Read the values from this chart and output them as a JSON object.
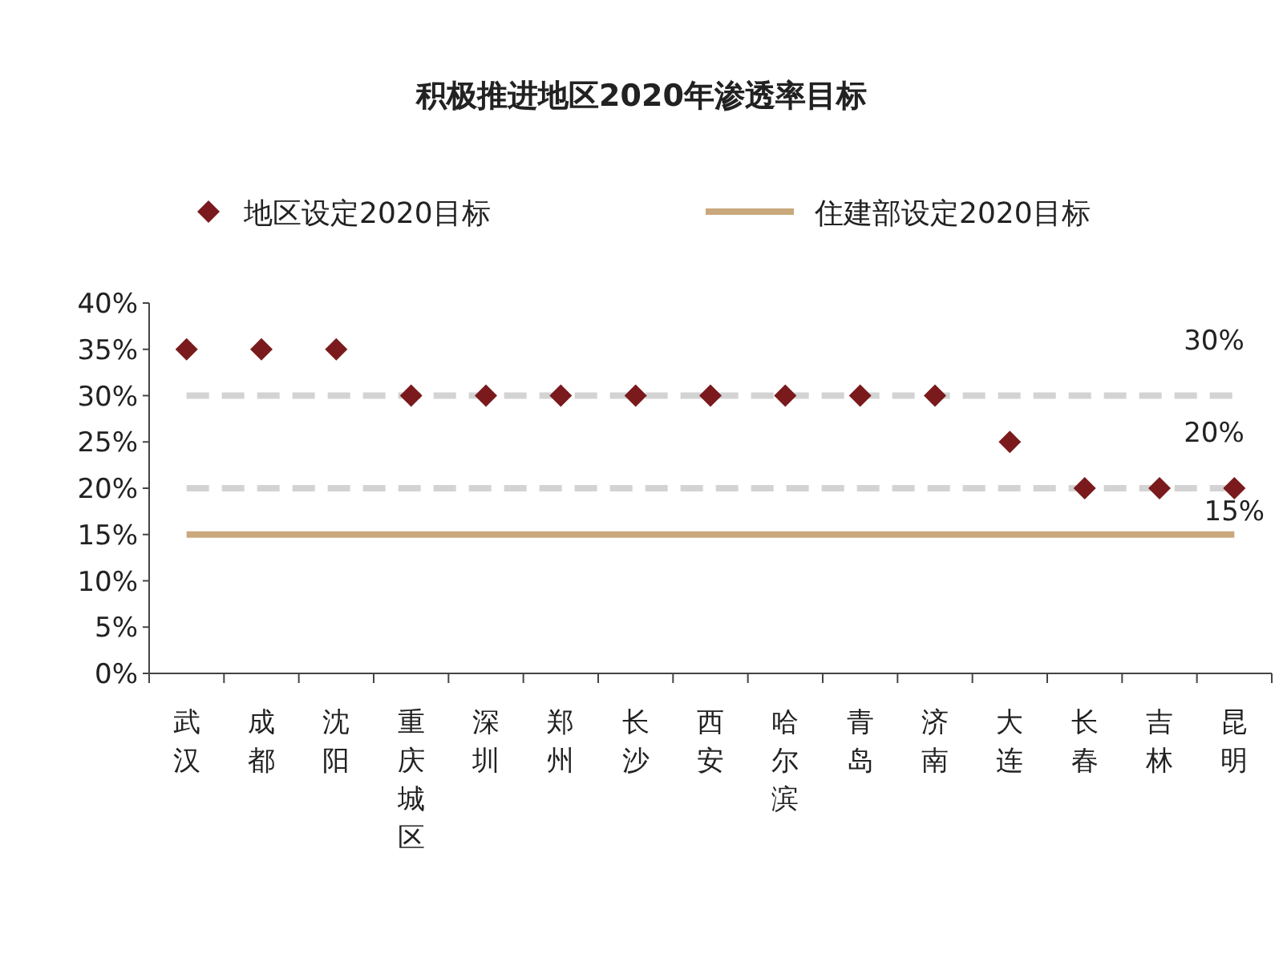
{
  "chart_data": {
    "type": "scatter",
    "title": "积极推进地区2020年渗透率目标",
    "categories": [
      "武汉",
      "成都",
      "沈阳",
      "重庆城区",
      "深圳",
      "郑州",
      "长沙",
      "西安",
      "哈尔滨",
      "青岛",
      "济南",
      "大连",
      "长春",
      "吉林",
      "昆明"
    ],
    "series": [
      {
        "name": "地区设定2020目标",
        "color": "#7a1a1d",
        "marker": "diamond",
        "values": [
          35,
          35,
          35,
          30,
          30,
          30,
          30,
          30,
          30,
          30,
          30,
          25,
          20,
          20,
          20
        ]
      },
      {
        "name": "住建部设定2020目标",
        "type": "line",
        "color": "#c9a97c",
        "line_style": "solid",
        "marker": "none",
        "values": [
          15,
          15,
          15,
          15,
          15,
          15,
          15,
          15,
          15,
          15,
          15,
          15,
          15,
          15,
          15
        ]
      }
    ],
    "ylim": [
      0,
      40
    ],
    "yticks": [
      {
        "value": 0,
        "label": "0%"
      },
      {
        "value": 5,
        "label": "5%"
      },
      {
        "value": 10,
        "label": "10%"
      },
      {
        "value": 15,
        "label": "15%"
      },
      {
        "value": 20,
        "label": "20%"
      },
      {
        "value": 25,
        "label": "25%"
      },
      {
        "value": 30,
        "label": "30%"
      },
      {
        "value": 35,
        "label": "35%"
      },
      {
        "value": 40,
        "label": "40%"
      }
    ],
    "ref_lines": [
      {
        "axis": "y",
        "value": 30,
        "label": "30%",
        "color": "#d3d3d3",
        "line_style": "dashed"
      },
      {
        "axis": "y",
        "value": 20,
        "label": "20%",
        "color": "#d3d3d3",
        "line_style": "dashed"
      }
    ],
    "annotations": [
      {
        "text": "15%",
        "x": "昆明",
        "y": 15
      }
    ],
    "legend": "top"
  }
}
